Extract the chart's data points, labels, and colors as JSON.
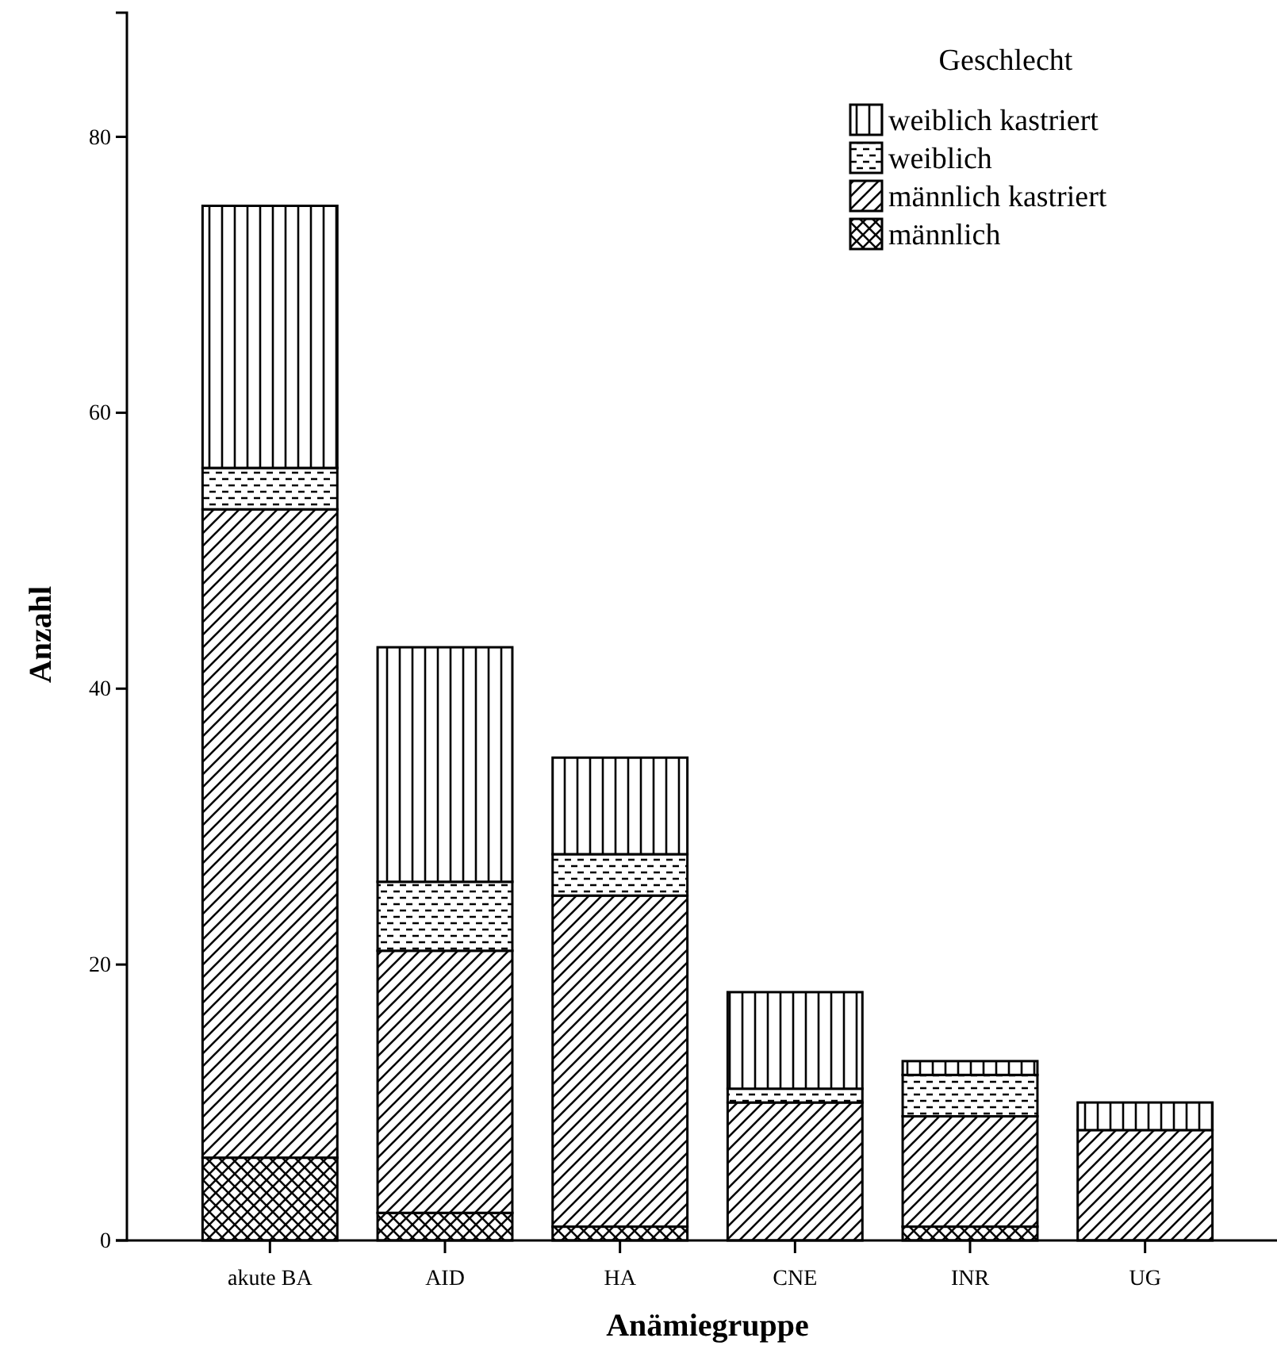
{
  "chart_data": {
    "type": "bar",
    "stacked": true,
    "xlabel": "Anämiegruppe",
    "ylabel": "Anzahl",
    "legend_title": "Geschlecht",
    "legend": "top right",
    "categories": [
      "akute BA",
      "AID",
      "HA",
      "CNE",
      "INR",
      "UG"
    ],
    "series": [
      {
        "name": "männlich",
        "color": "#000000",
        "values": [
          6,
          2,
          1,
          0,
          1,
          0
        ]
      },
      {
        "name": "männlich kastriert",
        "color": "#000000",
        "values": [
          47,
          19,
          24,
          10,
          8,
          8
        ]
      },
      {
        "name": "weiblich",
        "color": "#000000",
        "values": [
          3,
          5,
          3,
          1,
          3,
          0
        ]
      },
      {
        "name": "weiblich kastriert",
        "color": "#000000",
        "values": [
          19,
          17,
          7,
          7,
          1,
          2
        ]
      }
    ],
    "ylim": [
      0,
      89
    ],
    "yticks": [
      0,
      20,
      40,
      60,
      80
    ],
    "grid": false
  }
}
